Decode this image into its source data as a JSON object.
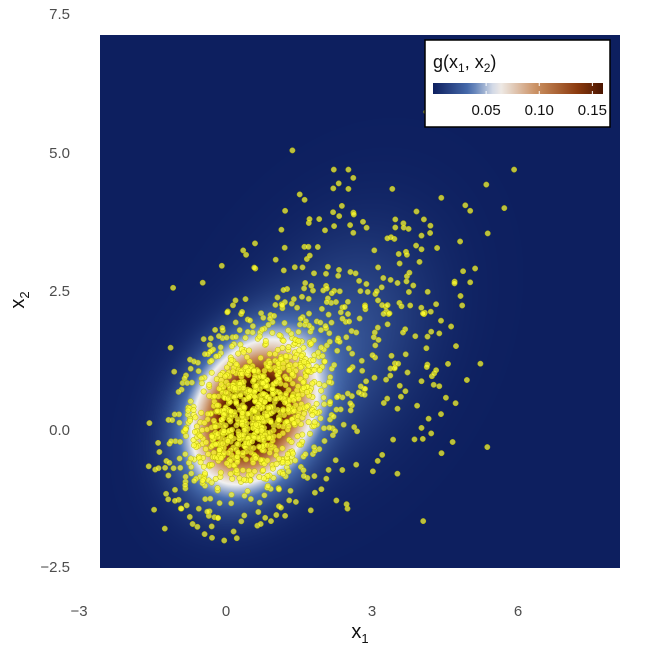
{
  "chart_data": {
    "type": "heatmap",
    "title": "",
    "xlabel": {
      "base": "x",
      "sub": "1"
    },
    "ylabel": {
      "base": "x",
      "sub": "2"
    },
    "xlim": [
      -3,
      8.2
    ],
    "ylim": [
      -2.5,
      7.2
    ],
    "x_ticks": [
      {
        "value": -3,
        "label": "−3"
      },
      {
        "value": 0,
        "label": "0"
      },
      {
        "value": 3,
        "label": "3"
      },
      {
        "value": 6,
        "label": "6"
      }
    ],
    "y_ticks": [
      {
        "value": -2.5,
        "label": "−2.5"
      },
      {
        "value": 0,
        "label": "0.0"
      },
      {
        "value": 2.5,
        "label": "2.5"
      },
      {
        "value": 5,
        "label": "5.0"
      },
      {
        "value": 7.5,
        "label": "7.5"
      }
    ],
    "grid": false,
    "legend": {
      "position": "top-right",
      "title": {
        "prefix": "g(x",
        "sub1": "1",
        "mid": ", x",
        "sub2": "2",
        "suffix": ")"
      },
      "range": [
        0,
        0.16
      ],
      "ticks": [
        {
          "value": 0.05,
          "label": "0.05"
        },
        {
          "value": 0.1,
          "label": "0.10"
        },
        {
          "value": 0.15,
          "label": "0.15"
        }
      ],
      "colors": [
        "#0d1f5f",
        "#4a6fb0",
        "#f2f2f2",
        "#c78a5a",
        "#8b3a0e",
        "#4a1500"
      ]
    },
    "density_field": {
      "components": [
        {
          "weight": 0.78,
          "mean": [
            0.1,
            0.3
          ],
          "sd": [
            0.78,
            0.82
          ],
          "rho": 0.25
        },
        {
          "weight": 0.22,
          "mean": [
            1.9,
            1.6
          ],
          "sd": [
            1.25,
            1.35
          ],
          "rho": 0.3
        }
      ],
      "peak_value": 0.16
    },
    "points": {
      "series_color": "#ffff33",
      "count": 1300,
      "values": [
        {
          "x": 0.95,
          "y": 5.1
        },
        {
          "x": 3.7,
          "y": 5.8
        },
        {
          "x": 5.5,
          "y": 4.75
        },
        {
          "x": 2.1,
          "y": 4.75
        },
        {
          "x": 1.8,
          "y": 4.75
        },
        {
          "x": 2.2,
          "y": 4.6
        },
        {
          "x": 1.9,
          "y": 4.5
        },
        {
          "x": 2.1,
          "y": 4.4
        },
        {
          "x": 3.0,
          "y": 4.4
        },
        {
          "x": 1.1,
          "y": 4.3
        },
        {
          "x": 1.2,
          "y": 4.2
        },
        {
          "x": 4.5,
          "y": 4.1
        },
        {
          "x": 4.6,
          "y": 4.0
        },
        {
          "x": 5.3,
          "y": 4.05
        },
        {
          "x": 0.8,
          "y": 4.0
        },
        {
          "x": 1.3,
          "y": 3.85
        },
        {
          "x": 1.5,
          "y": 3.85
        },
        {
          "x": 2.4,
          "y": 3.8
        },
        {
          "x": 2.2,
          "y": 3.6
        },
        {
          "x": 3.6,
          "y": 3.55
        },
        {
          "x": 2.9,
          "y": 3.5
        },
        {
          "x": 3.3,
          "y": 3.2
        },
        {
          "x": 3.6,
          "y": 3.3
        },
        {
          "x": 4.7,
          "y": 2.95
        },
        {
          "x": 4.6,
          "y": 2.7
        },
        {
          "x": 0.0,
          "y": 3.2
        },
        {
          "x": -0.5,
          "y": 3.0
        },
        {
          "x": -1.5,
          "y": 2.6
        },
        {
          "x": 4.4,
          "y": 2.45
        },
        {
          "x": 3.9,
          "y": 2.3
        },
        {
          "x": 4.0,
          "y": 2.0
        },
        {
          "x": 3.8,
          "y": 1.8
        },
        {
          "x": 3.7,
          "y": 1.5
        },
        {
          "x": 3.9,
          "y": 1.1
        },
        {
          "x": 3.6,
          "y": 0.9
        },
        {
          "x": 4.1,
          "y": 0.6
        },
        {
          "x": 4.3,
          "y": 0.5
        },
        {
          "x": 4.0,
          "y": 0.3
        },
        {
          "x": 3.6,
          "y": 0.05
        },
        {
          "x": 3.8,
          "y": -0.05
        },
        {
          "x": 4.95,
          "y": -0.3
        },
        {
          "x": 2.7,
          "y": -0.55
        },
        {
          "x": -2.0,
          "y": -0.65
        },
        {
          "x": -1.6,
          "y": -1.25
        },
        {
          "x": -1.1,
          "y": -1.7
        },
        {
          "x": -1.0,
          "y": -1.75
        },
        {
          "x": -0.7,
          "y": -1.95
        },
        {
          "x": -0.45,
          "y": -2.0
        },
        {
          "x": 0.3,
          "y": -1.7
        },
        {
          "x": 0.8,
          "y": -1.55
        }
      ]
    }
  }
}
